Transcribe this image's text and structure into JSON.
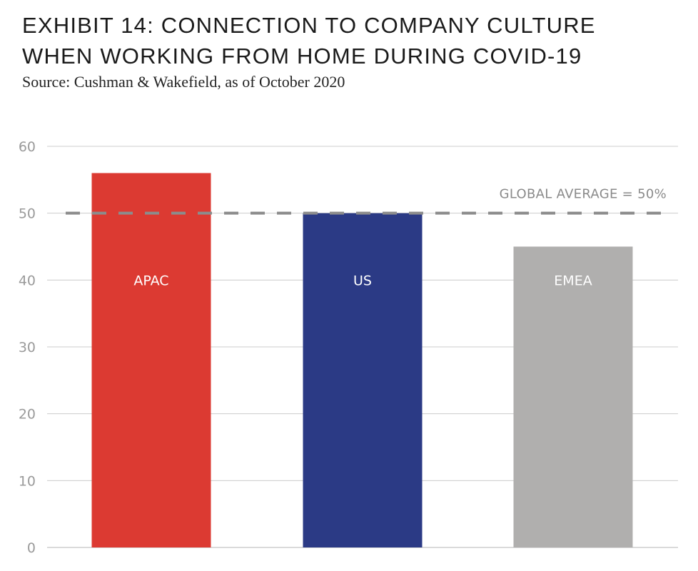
{
  "header": {
    "title_line1": "EXHIBIT 14: CONNECTION TO COMPANY CULTURE",
    "title_line2": "WHEN WORKING FROM HOME DURING COVID-19",
    "source": "Source: Cushman & Wakefield, as of October 2020"
  },
  "chart_data": {
    "type": "bar",
    "title": "EXHIBIT 14: CONNECTION TO COMPANY CULTURE WHEN WORKING FROM HOME DURING COVID-19",
    "subtitle": "Source: Cushman & Wakefield, as of October 2020",
    "xlabel": "",
    "ylabel": "",
    "categories": [
      "APAC",
      "US",
      "EMEA"
    ],
    "values": [
      56,
      50,
      45
    ],
    "colors": [
      "#dc3a32",
      "#2b3a85",
      "#b0afae"
    ],
    "ylim": [
      0,
      60
    ],
    "yticks": [
      0,
      10,
      20,
      30,
      40,
      50,
      60
    ],
    "grid": true,
    "category_labels_inside_bars": true,
    "reference_line": {
      "value": 50,
      "label": "GLOBAL AVERAGE = 50%",
      "style": "dashed",
      "color": "#8c8c8c"
    }
  }
}
